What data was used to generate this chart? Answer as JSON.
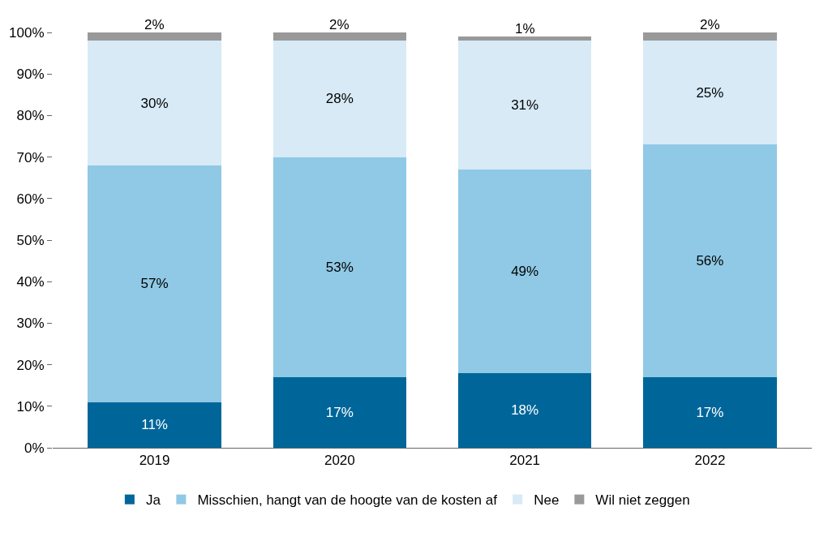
{
  "chart_data": {
    "type": "bar",
    "stacked": true,
    "categories": [
      "2019",
      "2020",
      "2021",
      "2022"
    ],
    "series": [
      {
        "name": "Ja",
        "color": "#006699",
        "values": [
          11,
          17,
          18,
          17
        ],
        "value_labels": [
          "11%",
          "17%",
          "18%",
          "17%"
        ]
      },
      {
        "name": "Misschien, hangt van de hoogte van de kosten af",
        "color": "#8fc9e5",
        "values": [
          57,
          53,
          49,
          56
        ],
        "value_labels": [
          "57%",
          "53%",
          "49%",
          "56%"
        ]
      },
      {
        "name": "Nee",
        "color": "#d7eaf6",
        "values": [
          30,
          28,
          31,
          25
        ],
        "value_labels": [
          "30%",
          "28%",
          "31%",
          "25%"
        ]
      },
      {
        "name": "Wil niet zeggen",
        "color": "#999999",
        "values": [
          2,
          2,
          1,
          2
        ],
        "value_labels": [
          "2%",
          "2%",
          "1%",
          "2%"
        ]
      }
    ],
    "ylim": [
      0,
      100
    ],
    "yticks": [
      {
        "value": 0,
        "label": "0%"
      },
      {
        "value": 10,
        "label": "10%"
      },
      {
        "value": 20,
        "label": "20%"
      },
      {
        "value": 30,
        "label": "30%"
      },
      {
        "value": 40,
        "label": "40%"
      },
      {
        "value": 50,
        "label": "50%"
      },
      {
        "value": 60,
        "label": "60%"
      },
      {
        "value": 70,
        "label": "70%"
      },
      {
        "value": 80,
        "label": "80%"
      },
      {
        "value": 90,
        "label": "90%"
      },
      {
        "value": 100,
        "label": "100%"
      }
    ],
    "legend": "bottom"
  }
}
